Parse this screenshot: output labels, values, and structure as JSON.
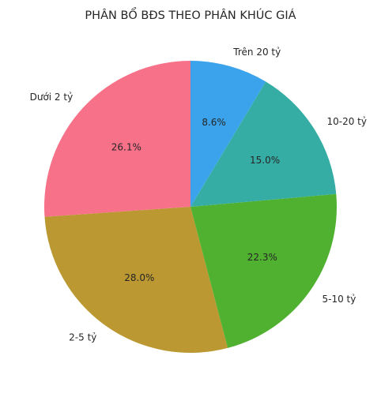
{
  "chart_data": {
    "type": "pie",
    "title": "PHÂN BỔ BĐS THEO PHÂN KHÚC GIÁ",
    "categories": [
      "Dưới 2 tỷ",
      "2-5 tỷ",
      "5-10 tỷ",
      "10-20 tỷ",
      "Trên 20 tỷ"
    ],
    "values": [
      26.1,
      28.0,
      22.3,
      15.0,
      8.6
    ],
    "value_labels": [
      "26.1%",
      "28.0%",
      "22.3%",
      "15.0%",
      "8.6%"
    ],
    "colors": [
      "#f77189",
      "#bb9832",
      "#50b131",
      "#36ada4",
      "#3ba3ec"
    ],
    "start_angle_deg": 90,
    "direction": "counterclockwise",
    "legend": "none"
  }
}
